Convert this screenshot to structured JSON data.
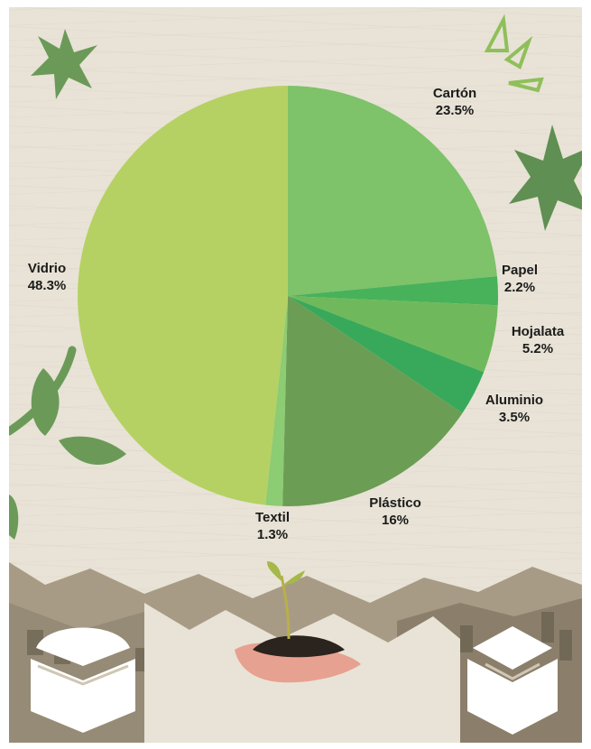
{
  "chart_data": {
    "type": "pie",
    "slices": [
      {
        "label": "Cartón",
        "percent_text": "23.5%",
        "value": 23.5,
        "color": "#7ec26a"
      },
      {
        "label": "Papel",
        "percent_text": "2.2%",
        "value": 2.2,
        "color": "#47b25a"
      },
      {
        "label": "Hojalata",
        "percent_text": "5.2%",
        "value": 5.2,
        "color": "#6fb95c"
      },
      {
        "label": "Aluminio",
        "percent_text": "3.5%",
        "value": 3.5,
        "color": "#38a95a"
      },
      {
        "label": "Plástico",
        "percent_text": "16%",
        "value": 16,
        "color": "#6c9d54"
      },
      {
        "label": "Textil",
        "percent_text": "1.3%",
        "value": 1.3,
        "color": "#8ccc73"
      },
      {
        "label": "Vidrio",
        "percent_text": "48.3%",
        "value": 48.3,
        "color": "#b5d163"
      }
    ]
  },
  "decor": {
    "icons": [
      "star-leaf-icon",
      "sparkle-lines-icon",
      "leaf-branch-icon",
      "seedling-in-hand-icon",
      "book-logo-icon"
    ],
    "colors": {
      "paper": "#e8e3d6",
      "leaf": "#6b9a58",
      "dark_leaf": "#5a8a4e"
    }
  }
}
